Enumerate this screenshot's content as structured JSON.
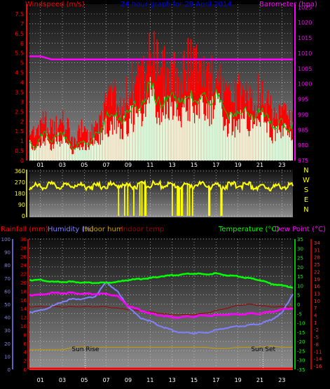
{
  "colors": {
    "wind_gust": "#ff0000",
    "wind_avg": "#00cc00",
    "wind_fill": "#e0ffe0",
    "barometer": "#ff00ff",
    "direction": "#ffff00",
    "rainfall": "#ff0000",
    "humidity": "#8080ff",
    "indoor_hum": "#c8a000",
    "indoor_temp": "#a00000",
    "temperature": "#00ff00",
    "dew_point": "#ff00ff",
    "sun": "#c8a000"
  },
  "chart_data": [
    {
      "type": "area",
      "title": "24 hour graph for 29 April 2014",
      "ylabel_left": "Windspeed (m/s)",
      "ylabel_right": "Barometer (hpa)",
      "x_ticks": [
        "01",
        "03",
        "05",
        "07",
        "09",
        "11",
        "13",
        "15",
        "17",
        "19",
        "21",
        "23"
      ],
      "y_left_ticks": [
        "0",
        "0.5",
        "1",
        "1.5",
        "2",
        "2.5",
        "3",
        "3.5",
        "4",
        "4.5",
        "5",
        "5.5",
        "6",
        "6.5",
        "7",
        "7.5"
      ],
      "y_right_ticks": [
        "975",
        "980",
        "985",
        "990",
        "995",
        "1000",
        "1005",
        "1010",
        "1015",
        "1020",
        "1025"
      ],
      "ylim_left": [
        0,
        8
      ],
      "ylim_right": [
        975,
        1026
      ],
      "xlim": [
        0,
        24
      ],
      "series": [
        {
          "name": "Windspeed gust",
          "x": [
            0,
            0.5,
            1,
            1.5,
            2,
            2.5,
            3,
            3.5,
            4,
            4.5,
            5,
            5.5,
            6,
            6.5,
            7,
            7.5,
            8,
            8.5,
            9,
            9.5,
            10,
            10.5,
            11,
            11.5,
            12,
            12.5,
            13,
            13.5,
            14,
            14.5,
            15,
            15.5,
            16,
            16.5,
            17,
            17.5,
            18,
            18.5,
            19,
            19.5,
            20,
            20.5,
            21,
            21.5,
            22,
            22.5,
            23,
            23.5,
            24
          ],
          "values": [
            2.0,
            1.8,
            2.4,
            2.6,
            1.9,
            2.2,
            2.5,
            2.2,
            1.0,
            2.0,
            2.0,
            1.4,
            2.3,
            2.5,
            3.5,
            4.5,
            3.8,
            3.4,
            4.4,
            5.0,
            4.6,
            5.4,
            7.8,
            5.8,
            5.2,
            5.6,
            6.0,
            5.0,
            5.5,
            6.2,
            5.8,
            5.3,
            5.6,
            5.0,
            5.4,
            4.4,
            3.6,
            3.8,
            4.0,
            4.4,
            3.9,
            3.6,
            4.4,
            4.2,
            3.0,
            2.6,
            3.4,
            2.4,
            3.0
          ]
        },
        {
          "name": "Windspeed avg",
          "x": [
            0,
            0.5,
            1,
            1.5,
            2,
            2.5,
            3,
            3.5,
            4,
            4.5,
            5,
            5.5,
            6,
            6.5,
            7,
            7.5,
            8,
            8.5,
            9,
            9.5,
            10,
            10.5,
            11,
            11.5,
            12,
            12.5,
            13,
            13.5,
            14,
            14.5,
            15,
            15.5,
            16,
            16.5,
            17,
            17.5,
            18,
            18.5,
            19,
            19.5,
            20,
            20.5,
            21,
            21.5,
            22,
            22.5,
            23,
            23.5,
            24
          ],
          "values": [
            1.0,
            0.6,
            1.2,
            1.5,
            0.9,
            1.3,
            1.4,
            1.0,
            0.5,
            0.9,
            1.0,
            0.8,
            1.4,
            1.5,
            2.2,
            2.6,
            2.3,
            2.0,
            2.5,
            2.8,
            2.6,
            3.0,
            4.2,
            3.2,
            2.9,
            3.1,
            3.4,
            2.9,
            3.1,
            3.4,
            3.2,
            3.0,
            3.3,
            2.9,
            3.6,
            2.8,
            2.2,
            2.3,
            2.4,
            2.6,
            2.3,
            2.1,
            2.6,
            2.4,
            1.8,
            1.6,
            2.1,
            1.5,
            1.8
          ]
        },
        {
          "name": "Barometer",
          "x": [
            0,
            1,
            2,
            3,
            4,
            5,
            6,
            7,
            8,
            9,
            10,
            11,
            12,
            13,
            14,
            15,
            16,
            17,
            18,
            19,
            20,
            21,
            22,
            23,
            24
          ],
          "values": [
            1009,
            1009,
            1008,
            1008,
            1008,
            1008,
            1008,
            1008,
            1008,
            1008,
            1008,
            1008,
            1008,
            1008,
            1008,
            1008,
            1008,
            1008,
            1008,
            1008,
            1008,
            1008,
            1008,
            1008,
            1008
          ]
        }
      ]
    },
    {
      "type": "line",
      "title": "",
      "y_ticks": [
        "0",
        "90",
        "180",
        "270",
        "360"
      ],
      "y_right_labels": [
        "N",
        "W",
        "S",
        "E",
        "N"
      ],
      "ylim": [
        0,
        360
      ],
      "xlim": [
        0,
        24
      ],
      "series": [
        {
          "name": "Wind direction",
          "x": [
            0,
            1,
            2,
            3,
            4,
            5,
            6,
            7,
            8,
            9,
            10,
            11,
            12,
            13,
            14,
            15,
            16,
            17,
            18,
            19,
            20,
            21,
            22,
            23,
            24
          ],
          "values": [
            230,
            240,
            245,
            235,
            250,
            240,
            235,
            245,
            250,
            240,
            245,
            250,
            248,
            245,
            240,
            250,
            245,
            235,
            240,
            250,
            245,
            225,
            230,
            240,
            235
          ]
        }
      ]
    },
    {
      "type": "line",
      "title": "",
      "legend": [
        "Rainfall (mm)",
        "Humidity (%)",
        "Indoor hum",
        "Indoor temp",
        "Temperature (°C)",
        "Dew Point (°C)"
      ],
      "axis_rain_ticks": [
        "0",
        "2",
        "4",
        "6",
        "8",
        "10",
        "12",
        "14",
        "16",
        "18",
        "20",
        "22",
        "24",
        "26",
        "28",
        "30"
      ],
      "axis_hum_ticks": [
        "0",
        "10",
        "20",
        "30",
        "40",
        "50",
        "60",
        "70",
        "80",
        "90",
        "100"
      ],
      "axis_temp_ticks": [
        "35",
        "30",
        "25",
        "20",
        "15",
        "10",
        "5",
        "0",
        "-5",
        "-10",
        "-15",
        "-20",
        "-25",
        "-30",
        "-35"
      ],
      "axis_indoor_ticks": [
        "34",
        "31",
        "28",
        "25",
        "22",
        "19",
        "16",
        "13",
        "10",
        "7",
        "4",
        "1",
        "-2",
        "-5",
        "-8",
        "-11",
        "-14",
        "-16"
      ],
      "ylim_temp": [
        -35,
        35
      ],
      "ylim_humidity": [
        0,
        100
      ],
      "xlim": [
        0,
        24
      ],
      "sun_rise_label": "Sun Rise",
      "sun_set_label": "Sun Set",
      "sun_rise_x": 5.1,
      "sun_set_x": 21.3,
      "series": [
        {
          "name": "Temperature",
          "x": [
            0,
            1,
            2,
            3,
            4,
            5,
            6,
            7,
            8,
            9,
            10,
            11,
            12,
            13,
            14,
            15,
            16,
            17,
            18,
            19,
            20,
            21,
            22,
            23,
            24
          ],
          "values": [
            13,
            13,
            12,
            12,
            12,
            11.5,
            11.5,
            11.5,
            12,
            13,
            13.5,
            14,
            15,
            15.5,
            16,
            16.5,
            16,
            16.5,
            15.5,
            15,
            14,
            13,
            11,
            10,
            9
          ]
        },
        {
          "name": "Dew Point",
          "x": [
            0,
            1,
            2,
            3,
            4,
            5,
            6,
            7,
            8,
            9,
            10,
            11,
            12,
            13,
            14,
            15,
            16,
            17,
            18,
            19,
            20,
            21,
            22,
            23,
            24
          ],
          "values": [
            5,
            5,
            6,
            6,
            6,
            5.5,
            5.5,
            5.5,
            4.5,
            -1,
            -3,
            -5,
            -6,
            -7,
            -7,
            -6.5,
            -6,
            -6,
            -5.5,
            -5.5,
            -5,
            -5,
            -4,
            -3,
            -2
          ]
        },
        {
          "name": "Humidity",
          "x": [
            0,
            1,
            2,
            3,
            4,
            5,
            6,
            7,
            8,
            9,
            10,
            11,
            12,
            13,
            14,
            15,
            16,
            17,
            18,
            19,
            20,
            21,
            22,
            23,
            24
          ],
          "values": [
            44,
            45,
            48,
            52,
            54,
            54,
            56,
            67,
            60,
            48,
            40,
            37,
            33,
            30,
            28,
            28,
            28,
            30,
            32,
            33,
            34,
            35,
            38,
            43,
            58
          ]
        },
        {
          "name": "Indoor temp",
          "x": [
            0,
            1,
            2,
            3,
            4,
            5,
            6,
            7,
            8,
            9,
            10,
            11,
            12,
            13,
            14,
            15,
            16,
            17,
            18,
            19,
            20,
            21,
            22,
            23,
            24
          ],
          "values": [
            48,
            48,
            48,
            48,
            48,
            48,
            48,
            48,
            47,
            46,
            45,
            44,
            43,
            42,
            42,
            42,
            43,
            45,
            47,
            49,
            50,
            49,
            48,
            48,
            48
          ]
        },
        {
          "name": "Indoor hum",
          "x": [
            0,
            1,
            2,
            3,
            4,
            5,
            6,
            7,
            8,
            9,
            10,
            11,
            12,
            13,
            14,
            15,
            16,
            17,
            18,
            19,
            20,
            21,
            22,
            23,
            24
          ],
          "values": [
            15,
            15,
            15,
            15,
            17,
            17,
            17,
            17,
            17,
            17,
            17,
            17,
            17,
            17,
            17,
            17,
            17,
            16,
            16,
            17,
            17,
            17,
            18,
            17,
            17
          ]
        },
        {
          "name": "Rainfall",
          "x": [
            0,
            24
          ],
          "values": [
            0,
            0
          ]
        }
      ]
    }
  ]
}
